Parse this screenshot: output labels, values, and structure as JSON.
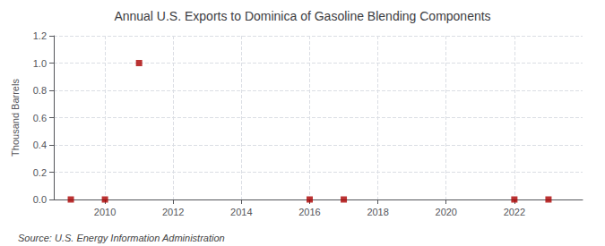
{
  "chart_data": {
    "type": "scatter",
    "title": "Annual U.S. Exports to Dominica of Gasoline Blending Components",
    "ylabel": "Thousand Barrels",
    "annotations": [
      "Source: U.S. Energy Information Administration"
    ],
    "x": [
      2009,
      2010,
      2011,
      2016,
      2017,
      2022,
      2023
    ],
    "values": [
      0,
      0,
      1.0,
      0,
      0,
      0,
      0
    ],
    "color": "#aa0000",
    "marker": "square",
    "xlim": [
      2008.5,
      2024.0
    ],
    "ylim": [
      0.0,
      1.2
    ],
    "xticks": [
      2010,
      2012,
      2014,
      2016,
      2018,
      2020,
      2022
    ],
    "yticks": [
      {
        "value": 0.0,
        "label": "0.0"
      },
      0.2,
      0.4,
      0.6,
      0.8,
      {
        "value": 1.0,
        "label": "1.0"
      },
      1.2
    ],
    "grid": true
  }
}
